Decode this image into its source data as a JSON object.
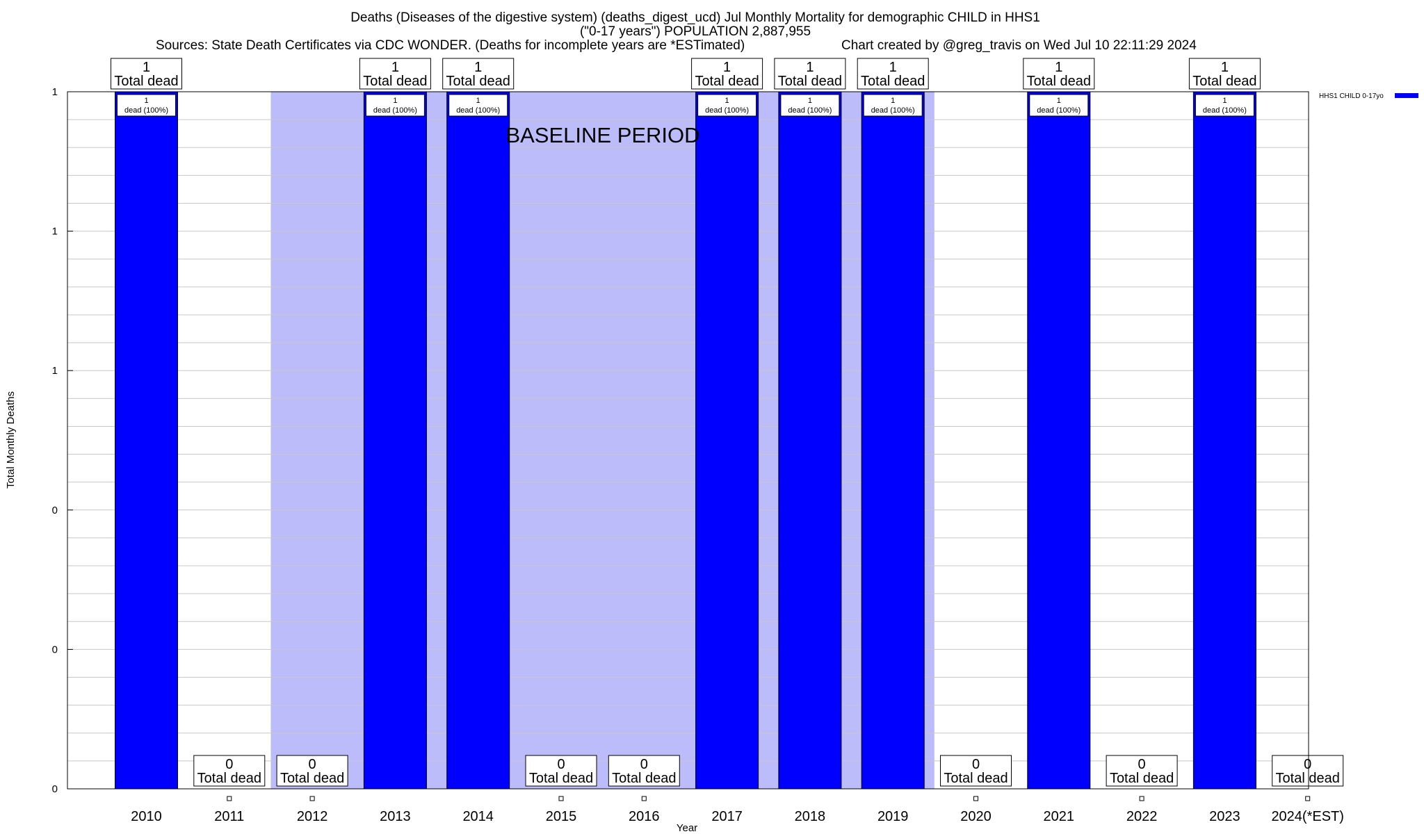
{
  "chart_data": {
    "type": "bar",
    "title_lines": [
      "Deaths (Diseases of the digestive system) (deaths_digest_ucd) Jul Monthly Mortality for demographic CHILD in HHS1",
      "(\"0-17 years\") POPULATION 2,887,955"
    ],
    "sources": "Sources: State Death Certificates via CDC WONDER. (Deaths for incomplete years are *ESTimated)",
    "credit": "Chart created by @greg_travis on Wed Jul 10 22:11:29 2024",
    "xlabel": "Year",
    "ylabel": "Total Monthly Deaths",
    "y_tick_labels": [
      "0",
      "0",
      "0",
      "1",
      "1",
      "1"
    ],
    "ylim": [
      0,
      1
    ],
    "grid": true,
    "legend": {
      "position": "top-right",
      "label": "HHS1 CHILD 0-17yo",
      "color": "#0000ff"
    },
    "baseline_label": "BASELINE PERIOD",
    "baseline_color": "#bcbcfa",
    "bar_color": "#0000ff",
    "categories": [
      "2010",
      "2011",
      "2012",
      "2013",
      "2014",
      "2015",
      "2016",
      "2017",
      "2018",
      "2019",
      "2020",
      "2021",
      "2022",
      "2023",
      "2024(*EST)"
    ],
    "values": [
      1,
      0,
      0,
      1,
      1,
      0,
      0,
      1,
      1,
      1,
      0,
      1,
      0,
      1,
      0
    ],
    "total_labels": [
      "1",
      "0",
      "0",
      "1",
      "1",
      "0",
      "0",
      "1",
      "1",
      "1",
      "0",
      "1",
      "0",
      "1",
      "0"
    ],
    "total_suffix": "Total dead",
    "inner_labels": [
      [
        "1",
        "dead (100%)"
      ],
      null,
      null,
      [
        "1",
        "dead (100%)"
      ],
      [
        "1",
        "dead (100%)"
      ],
      null,
      null,
      [
        "1",
        "dead (100%)"
      ],
      [
        "1",
        "dead (100%)"
      ],
      [
        "1",
        "dead (100%)"
      ],
      null,
      [
        "1",
        "dead (100%)"
      ],
      null,
      [
        "1",
        "dead (100%)"
      ],
      null
    ]
  }
}
